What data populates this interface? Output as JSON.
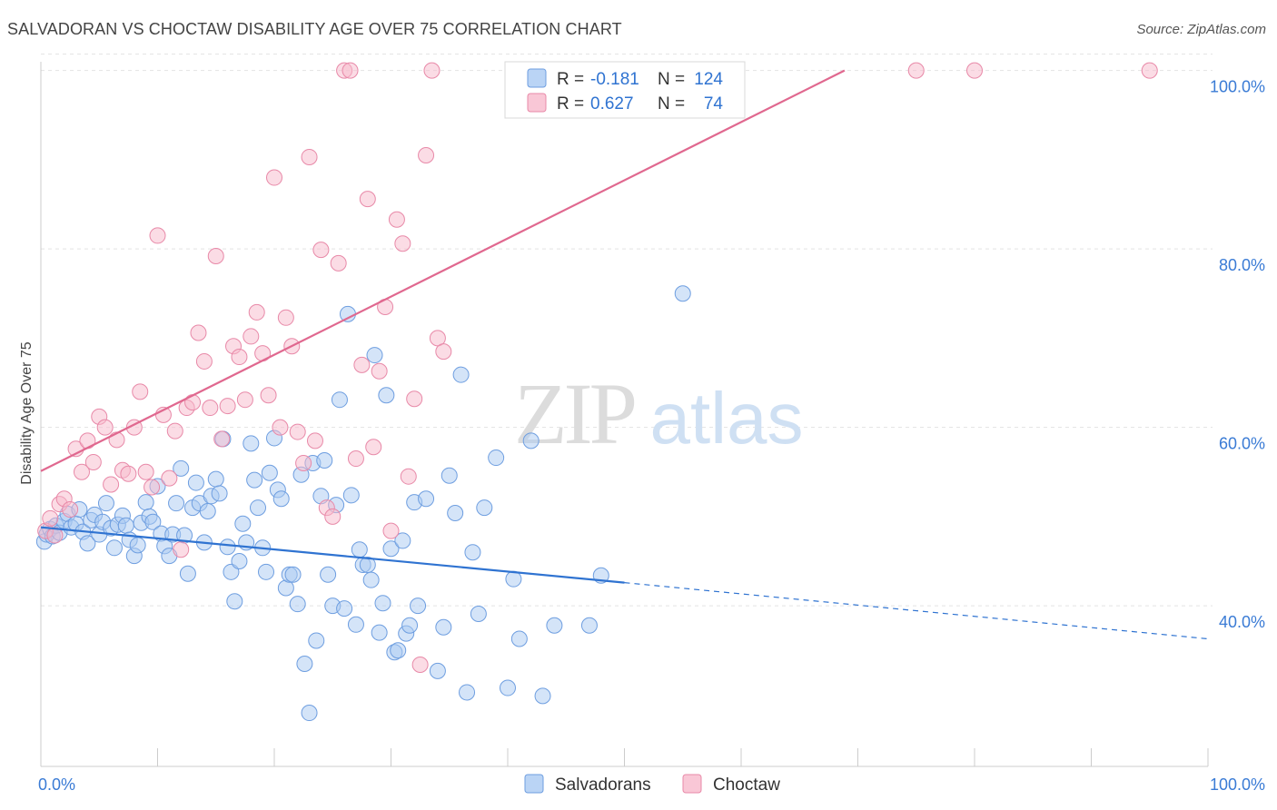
{
  "title": "SALVADORAN VS CHOCTAW DISABILITY AGE OVER 75 CORRELATION CHART",
  "source": "Source: ZipAtlas.com",
  "watermark": {
    "zip": "ZIP",
    "atlas": "atlas"
  },
  "chart_data": {
    "type": "scatter",
    "xlabel": "",
    "ylabel": "Disability Age Over 75",
    "xlim": [
      0,
      100
    ],
    "ylim": [
      22,
      102
    ],
    "x_tick_labels": [
      "0.0%",
      "100.0%"
    ],
    "y_tick_labels": [
      {
        "value": 100,
        "label": "100.0%"
      },
      {
        "value": 80,
        "label": "80.0%"
      },
      {
        "value": 60,
        "label": "60.0%"
      },
      {
        "value": 40,
        "label": "40.0%"
      }
    ],
    "grid": true,
    "legend_position": "bottom",
    "stats": [
      {
        "r_label": "R =",
        "r": "-0.181",
        "n_label": "N =",
        "n": "124",
        "color": "#a9c9f2",
        "edge": "#6e9ee0"
      },
      {
        "r_label": "R =",
        "r": "0.627",
        "n_label": "N =",
        "n": "74",
        "color": "#f7b9cc",
        "edge": "#e889a8"
      }
    ],
    "series": [
      {
        "name": "Salvadorans",
        "color": "#a9c9f2",
        "edge": "#6e9ee0",
        "line_color": "#2f73d1",
        "trend": {
          "x0": 0,
          "y0": 48.8,
          "x1": 50,
          "y1": 42.6,
          "dash_to_x": 100,
          "dash_to_y": 36.3
        },
        "points": [
          [
            0.3,
            47.2
          ],
          [
            0.5,
            48.0
          ],
          [
            0.8,
            48.6
          ],
          [
            1.0,
            47.8
          ],
          [
            1.3,
            49.0
          ],
          [
            1.6,
            48.2
          ],
          [
            2.0,
            49.5
          ],
          [
            2.3,
            50.3
          ],
          [
            2.6,
            48.8
          ],
          [
            3.0,
            49.2
          ],
          [
            3.3,
            50.8
          ],
          [
            3.6,
            48.3
          ],
          [
            4.0,
            47.0
          ],
          [
            4.3,
            49.6
          ],
          [
            4.6,
            50.2
          ],
          [
            5.0,
            48.0
          ],
          [
            5.3,
            49.4
          ],
          [
            5.6,
            51.5
          ],
          [
            6.0,
            48.7
          ],
          [
            6.3,
            46.5
          ],
          [
            6.6,
            49.1
          ],
          [
            7.0,
            50.1
          ],
          [
            7.3,
            49.0
          ],
          [
            7.6,
            47.4
          ],
          [
            8.0,
            45.6
          ],
          [
            8.3,
            46.8
          ],
          [
            8.6,
            49.3
          ],
          [
            9.0,
            51.6
          ],
          [
            9.3,
            50.0
          ],
          [
            9.6,
            49.4
          ],
          [
            10.0,
            53.4
          ],
          [
            10.3,
            48.1
          ],
          [
            10.6,
            46.7
          ],
          [
            11.0,
            45.6
          ],
          [
            11.3,
            48.0
          ],
          [
            11.6,
            51.5
          ],
          [
            12.0,
            55.4
          ],
          [
            12.3,
            47.9
          ],
          [
            12.6,
            43.6
          ],
          [
            13.0,
            51.0
          ],
          [
            13.3,
            53.8
          ],
          [
            13.6,
            51.5
          ],
          [
            14.0,
            47.1
          ],
          [
            14.3,
            50.6
          ],
          [
            14.6,
            52.3
          ],
          [
            15.0,
            54.2
          ],
          [
            15.3,
            52.6
          ],
          [
            15.6,
            58.7
          ],
          [
            16.0,
            46.6
          ],
          [
            16.3,
            43.8
          ],
          [
            16.6,
            40.5
          ],
          [
            17.0,
            45.0
          ],
          [
            17.3,
            49.2
          ],
          [
            17.6,
            47.1
          ],
          [
            18.0,
            58.2
          ],
          [
            18.3,
            54.1
          ],
          [
            18.6,
            51.0
          ],
          [
            19.0,
            46.5
          ],
          [
            19.3,
            43.8
          ],
          [
            19.6,
            54.9
          ],
          [
            20.0,
            58.8
          ],
          [
            20.3,
            53.0
          ],
          [
            20.6,
            52.0
          ],
          [
            21.0,
            42.0
          ],
          [
            21.3,
            43.5
          ],
          [
            21.6,
            43.5
          ],
          [
            22.0,
            40.2
          ],
          [
            22.3,
            54.7
          ],
          [
            22.6,
            33.5
          ],
          [
            23.0,
            28.0
          ],
          [
            23.3,
            56.0
          ],
          [
            23.6,
            36.1
          ],
          [
            24.0,
            52.3
          ],
          [
            24.3,
            56.3
          ],
          [
            24.6,
            43.5
          ],
          [
            25.0,
            40.0
          ],
          [
            25.3,
            51.3
          ],
          [
            25.6,
            63.1
          ],
          [
            26.0,
            39.7
          ],
          [
            26.3,
            72.7
          ],
          [
            26.6,
            52.4
          ],
          [
            27.0,
            37.9
          ],
          [
            27.3,
            46.3
          ],
          [
            27.6,
            44.6
          ],
          [
            28.0,
            44.6
          ],
          [
            28.3,
            42.9
          ],
          [
            28.6,
            68.1
          ],
          [
            29.0,
            37.0
          ],
          [
            29.3,
            40.3
          ],
          [
            29.6,
            63.6
          ],
          [
            30.0,
            46.4
          ],
          [
            30.3,
            34.8
          ],
          [
            30.6,
            35.0
          ],
          [
            31.0,
            47.3
          ],
          [
            31.3,
            36.9
          ],
          [
            31.6,
            37.8
          ],
          [
            32.0,
            51.6
          ],
          [
            32.3,
            40.0
          ],
          [
            33.0,
            52.0
          ],
          [
            34.0,
            32.7
          ],
          [
            34.5,
            37.6
          ],
          [
            35.0,
            54.6
          ],
          [
            35.5,
            50.4
          ],
          [
            36.0,
            65.9
          ],
          [
            36.5,
            30.3
          ],
          [
            37.0,
            46.0
          ],
          [
            37.5,
            39.1
          ],
          [
            38.0,
            51.0
          ],
          [
            39.0,
            56.6
          ],
          [
            40.0,
            30.8
          ],
          [
            40.5,
            43.0
          ],
          [
            41.0,
            36.3
          ],
          [
            42.0,
            58.5
          ],
          [
            43.0,
            29.9
          ],
          [
            44.0,
            37.8
          ],
          [
            47.0,
            37.8
          ],
          [
            48.0,
            43.4
          ],
          [
            55.0,
            75.0
          ]
        ]
      },
      {
        "name": "Choctaw",
        "color": "#f7b9cc",
        "edge": "#e889a8",
        "line_color": "#e0688f",
        "trend": {
          "x0": 0,
          "y0": 55.1,
          "x1": 100,
          "y1": 120.3
        },
        "points": [
          [
            0.4,
            48.4
          ],
          [
            0.8,
            49.8
          ],
          [
            1.2,
            47.9
          ],
          [
            1.6,
            51.4
          ],
          [
            2.0,
            52.0
          ],
          [
            2.5,
            50.8
          ],
          [
            3.0,
            57.6
          ],
          [
            3.5,
            55.0
          ],
          [
            4.0,
            58.5
          ],
          [
            4.5,
            56.1
          ],
          [
            5.0,
            61.2
          ],
          [
            5.5,
            60.0
          ],
          [
            6.0,
            53.6
          ],
          [
            6.5,
            58.6
          ],
          [
            7.0,
            55.2
          ],
          [
            7.5,
            54.8
          ],
          [
            8.0,
            60.0
          ],
          [
            8.5,
            64.0
          ],
          [
            9.0,
            55.0
          ],
          [
            9.5,
            53.3
          ],
          [
            10.0,
            81.5
          ],
          [
            10.5,
            61.4
          ],
          [
            11.0,
            54.3
          ],
          [
            11.5,
            59.6
          ],
          [
            12.0,
            46.3
          ],
          [
            12.5,
            62.2
          ],
          [
            13.0,
            62.8
          ],
          [
            13.5,
            70.6
          ],
          [
            14.0,
            67.4
          ],
          [
            14.5,
            62.2
          ],
          [
            15.0,
            79.2
          ],
          [
            15.5,
            58.7
          ],
          [
            16.0,
            62.4
          ],
          [
            16.5,
            69.1
          ],
          [
            17.0,
            67.9
          ],
          [
            17.5,
            63.1
          ],
          [
            18.0,
            70.2
          ],
          [
            18.5,
            72.9
          ],
          [
            19.0,
            68.3
          ],
          [
            19.5,
            63.6
          ],
          [
            20.0,
            88.0
          ],
          [
            20.5,
            60.0
          ],
          [
            21.0,
            72.3
          ],
          [
            21.5,
            69.1
          ],
          [
            22.0,
            59.5
          ],
          [
            22.5,
            56.0
          ],
          [
            23.0,
            90.3
          ],
          [
            23.5,
            58.5
          ],
          [
            24.0,
            79.9
          ],
          [
            24.5,
            51.0
          ],
          [
            25.0,
            50.0
          ],
          [
            25.5,
            78.4
          ],
          [
            26.0,
            100.0
          ],
          [
            26.5,
            100.0
          ],
          [
            27.0,
            56.5
          ],
          [
            27.5,
            67.0
          ],
          [
            28.0,
            85.6
          ],
          [
            28.5,
            57.8
          ],
          [
            29.0,
            66.3
          ],
          [
            29.5,
            73.5
          ],
          [
            30.0,
            48.4
          ],
          [
            30.5,
            83.3
          ],
          [
            31.0,
            80.6
          ],
          [
            31.5,
            54.5
          ],
          [
            32.0,
            63.2
          ],
          [
            32.5,
            33.4
          ],
          [
            33.0,
            90.5
          ],
          [
            33.5,
            100.0
          ],
          [
            34.0,
            70.0
          ],
          [
            34.5,
            68.5
          ],
          [
            75.0,
            100.0
          ],
          [
            80.0,
            100.0
          ],
          [
            95.0,
            100.0
          ]
        ]
      }
    ]
  }
}
